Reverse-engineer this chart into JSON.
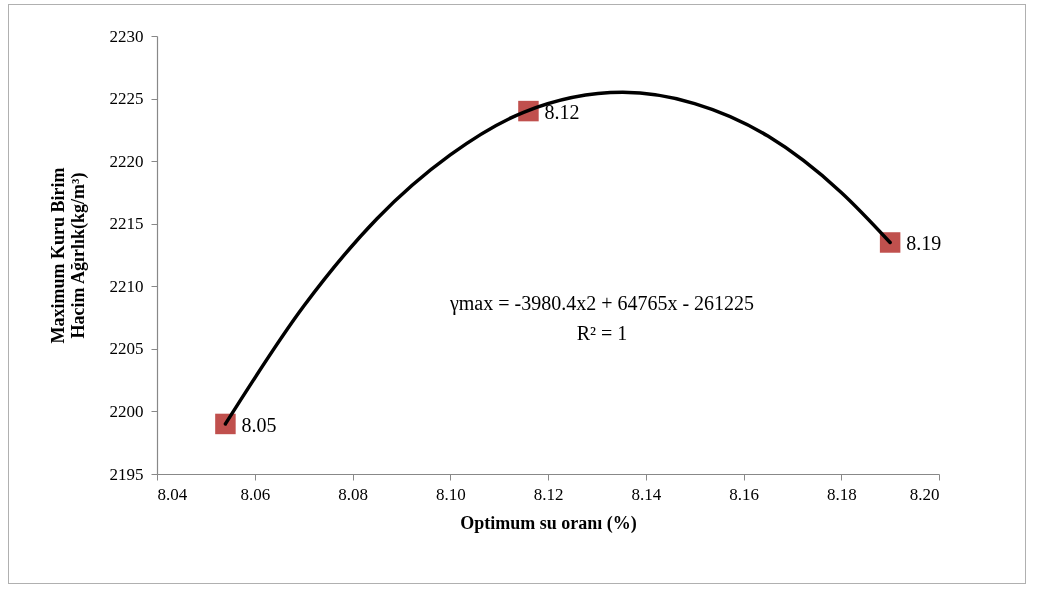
{
  "chart_data": {
    "type": "scatter",
    "xlabel": "Optimum su oranı (%)",
    "ylabel": "Maximum Kuru Birim Hacim Ağırlık(kg/m³)",
    "xlim": [
      8.04,
      8.2
    ],
    "xticks": [
      8.04,
      8.06,
      8.08,
      {
        "value": 8.1,
        "label": "8.10"
      },
      8.12,
      8.14,
      8.16,
      8.18,
      {
        "value": 8.2,
        "label": "8.20"
      }
    ],
    "ylim": [
      2195,
      2230
    ],
    "yticks": [
      2195,
      2200,
      2205,
      2210,
      2215,
      2220,
      2225,
      2230
    ],
    "grid": false,
    "series": [
      {
        "color": "#c0504d",
        "marker": "square",
        "x": [
          8.054,
          8.116,
          8.19
        ],
        "values": [
          2199,
          2224,
          2213.5
        ]
      },
      {
        "type": "line",
        "color": "#000000",
        "line_style": "solid",
        "x": [
          8.054,
          8.07,
          8.085,
          8.1,
          8.115,
          8.1353,
          8.15,
          8.165,
          8.18,
          8.19
        ],
        "values": [
          2199,
          2208.4,
          2215.4,
          2220.5,
          2223.9,
          2225.5,
          2224.6,
          2222,
          2217.5,
          2213.5
        ]
      }
    ],
    "annotations": [
      "γmax  = -3980.4x2 + 64765x - 261225",
      "R² = 1",
      {
        "text": "8.05",
        "x": 8.054,
        "y": 2199
      },
      {
        "text": "8.12",
        "x": 8.116,
        "y": 2224
      },
      {
        "text": "8.19",
        "x": 8.19,
        "y": 2213.5
      }
    ]
  }
}
